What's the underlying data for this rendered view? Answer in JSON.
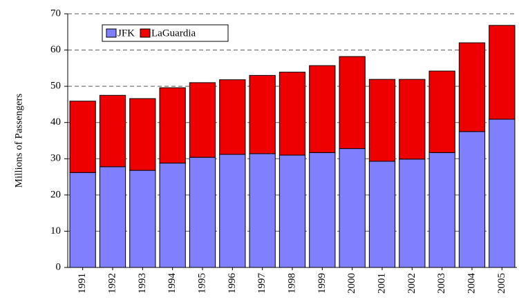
{
  "chart_data": {
    "type": "stacked_bar",
    "y_label": "Millions of Passengers",
    "categories": [
      "1991",
      "1992",
      "1993",
      "1994",
      "1995",
      "1996",
      "1997",
      "1998",
      "1999",
      "2000",
      "2001",
      "2002",
      "2003",
      "2004",
      "2005"
    ],
    "series": [
      {
        "name": "JFK",
        "color": "#8080ff",
        "values": [
          26.2,
          27.8,
          26.8,
          28.8,
          30.4,
          31.2,
          31.4,
          31.0,
          31.7,
          32.8,
          29.3,
          29.9,
          31.7,
          37.5,
          40.9
        ]
      },
      {
        "name": "LaGuardia",
        "color": "#ee0000",
        "values": [
          19.7,
          19.7,
          19.8,
          20.8,
          20.6,
          20.6,
          21.6,
          22.9,
          24.0,
          25.4,
          22.6,
          22.0,
          22.5,
          24.5,
          25.9
        ]
      }
    ],
    "ylim": [
      0,
      70
    ],
    "yticks": [
      0,
      10,
      20,
      30,
      40,
      50,
      60,
      70
    ],
    "grid": true,
    "legend": "top-left"
  }
}
